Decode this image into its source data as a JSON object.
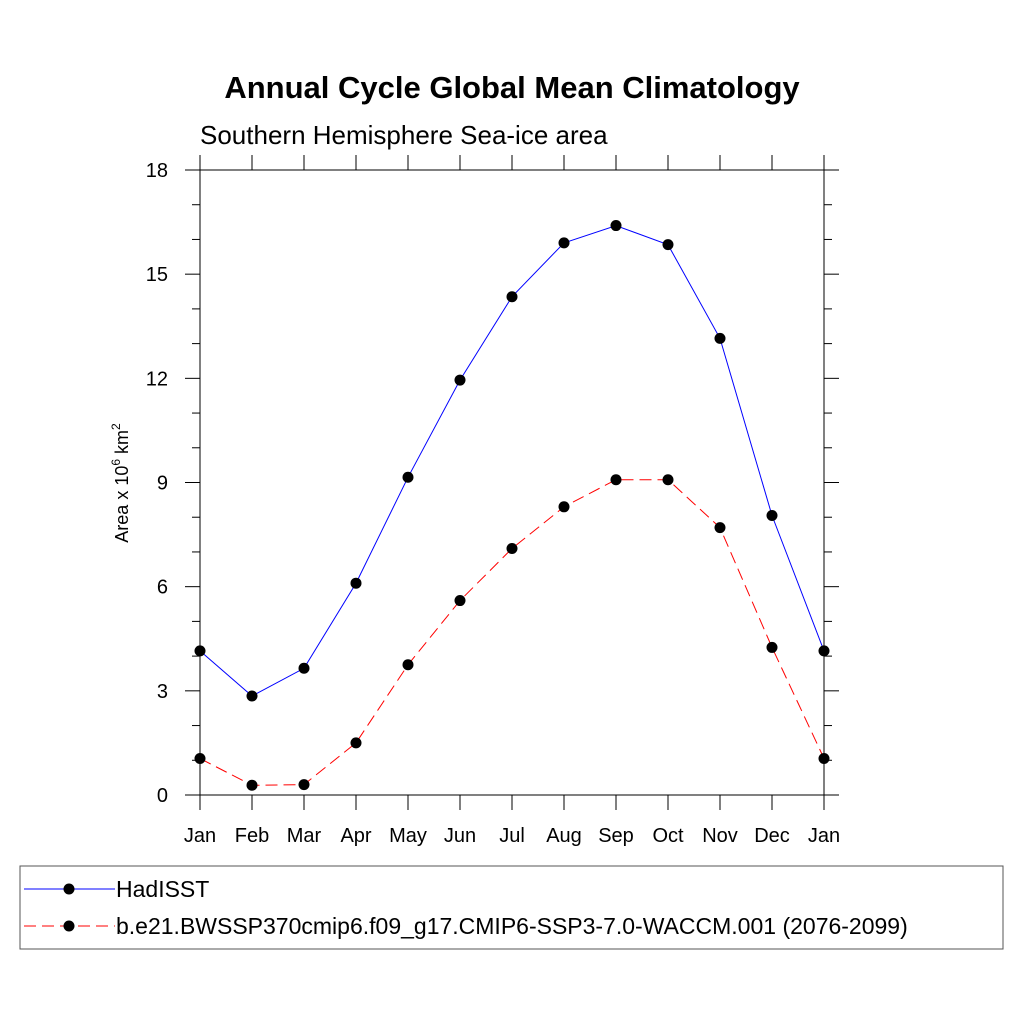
{
  "chart_data": {
    "type": "line",
    "title": "Annual Cycle Global Mean Climatology",
    "subtitle": "Southern Hemisphere Sea-ice area",
    "ylabel_base": "Area x 10",
    "ylabel_exp": "6",
    "ylabel_unit": " km",
    "ylabel_unit_exp": "2",
    "xlabel": "",
    "categories": [
      "Jan",
      "Feb",
      "Mar",
      "Apr",
      "May",
      "Jun",
      "Jul",
      "Aug",
      "Sep",
      "Oct",
      "Nov",
      "Dec",
      "Jan"
    ],
    "ylim": [
      0,
      18
    ],
    "yticks": [
      0,
      3,
      6,
      9,
      12,
      15,
      18
    ],
    "yminor_step": 1,
    "grid": false,
    "legend_position": "bottom",
    "series": [
      {
        "name": "HadISST",
        "color": "#0000ff",
        "dash": "solid",
        "values": [
          4.15,
          2.85,
          3.65,
          6.1,
          9.15,
          11.95,
          14.35,
          15.9,
          16.4,
          15.85,
          13.15,
          8.05,
          4.15
        ]
      },
      {
        "name": "b.e21.BWSSP370cmip6.f09_g17.CMIP6-SSP3-7.0-WACCM.001 (2076-2099)",
        "color": "#ff0000",
        "dash": "dashed",
        "values": [
          1.05,
          0.28,
          0.3,
          1.5,
          3.75,
          5.6,
          7.1,
          8.3,
          9.08,
          9.08,
          7.7,
          4.25,
          1.05
        ]
      }
    ]
  }
}
